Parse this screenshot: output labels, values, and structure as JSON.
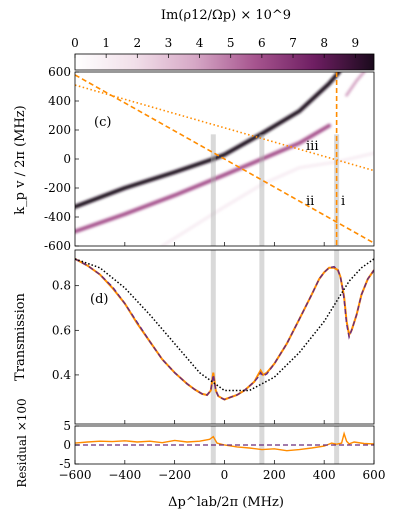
{
  "colorbar": {
    "label": "Im(ρ12/Ωp) × 10^9",
    "ticks": [
      0,
      1,
      2,
      3,
      4,
      5,
      6,
      7,
      8,
      9
    ],
    "range": [
      0,
      9.6
    ],
    "colormap": [
      "#ffffff",
      "#f1dfe9",
      "#d6a8c6",
      "#a7558f",
      "#6e1e62",
      "#1a0a1c"
    ]
  },
  "chart_data": [
    {
      "panel": "(c)",
      "type": "heatmap",
      "ylabel": "k_p v / 2π (MHz)",
      "ylim": [
        -600,
        600
      ],
      "yticks": [
        -600,
        -400,
        -200,
        0,
        200,
        400,
        600
      ],
      "xlim": [
        -600,
        600
      ],
      "grid": false,
      "annotations": [
        "(c)",
        "i",
        "ii",
        "iii"
      ],
      "absorption_tracks": [
        {
          "strength": 9,
          "points": [
            [
              -600,
              -330
            ],
            [
              -400,
              -200
            ],
            [
              -200,
              -90
            ],
            [
              -45,
              0
            ],
            [
              0,
              30
            ],
            [
              150,
              175
            ],
            [
              300,
              330
            ],
            [
              420,
              520
            ],
            [
              460,
              600
            ]
          ]
        },
        {
          "strength": 6,
          "points": [
            [
              -600,
              -500
            ],
            [
              -400,
              -380
            ],
            [
              -200,
              -250
            ],
            [
              0,
              -110
            ],
            [
              150,
              0
            ],
            [
              300,
              110
            ],
            [
              420,
              230
            ]
          ]
        },
        {
          "strength": 4,
          "points": [
            [
              490,
              440
            ],
            [
              530,
              540
            ],
            [
              560,
              600
            ]
          ]
        },
        {
          "strength": 1,
          "points": [
            [
              -250,
              -600
            ],
            [
              0,
              -330
            ],
            [
              150,
              -175
            ],
            [
              300,
              -60
            ],
            [
              450,
              -20
            ],
            [
              600,
              40
            ]
          ]
        }
      ],
      "lines": [
        {
          "label": "i",
          "style": "dashed",
          "color": "#ff8c00",
          "points": [
            [
              450,
              600
            ],
            [
              450,
              -600
            ]
          ]
        },
        {
          "label": "ii",
          "style": "dashed",
          "color": "#ff8c00",
          "points": [
            [
              -600,
              580
            ],
            [
              600,
              -580
            ]
          ]
        },
        {
          "label": "iii",
          "style": "dotted",
          "color": "#ff8c00",
          "points": [
            [
              -600,
              510
            ],
            [
              600,
              -80
            ]
          ]
        }
      ],
      "markers_x": [
        -45,
        150,
        450
      ]
    },
    {
      "panel": "(d)",
      "type": "line",
      "ylabel": "Transmission",
      "ylim": [
        0.18,
        0.96
      ],
      "yticks": [
        0.4,
        0.6,
        0.8
      ],
      "series": [
        {
          "style": "solid",
          "color": "#ff8c00",
          "x": [
            -600,
            -550,
            -500,
            -450,
            -400,
            -350,
            -300,
            -250,
            -200,
            -150,
            -120,
            -90,
            -70,
            -55,
            -45,
            -35,
            -25,
            -10,
            0,
            25,
            50,
            80,
            100,
            120,
            135,
            145,
            155,
            170,
            200,
            250,
            300,
            350,
            380,
            400,
            420,
            440,
            455,
            465,
            475,
            480,
            490,
            500,
            510,
            530,
            550,
            575,
            600
          ],
          "y": [
            0.92,
            0.89,
            0.85,
            0.79,
            0.72,
            0.63,
            0.55,
            0.47,
            0.41,
            0.36,
            0.335,
            0.315,
            0.31,
            0.33,
            0.41,
            0.33,
            0.305,
            0.295,
            0.29,
            0.3,
            0.31,
            0.33,
            0.35,
            0.37,
            0.4,
            0.42,
            0.4,
            0.41,
            0.45,
            0.54,
            0.65,
            0.76,
            0.83,
            0.86,
            0.88,
            0.88,
            0.87,
            0.84,
            0.78,
            0.75,
            0.64,
            0.58,
            0.6,
            0.67,
            0.76,
            0.83,
            0.87
          ]
        },
        {
          "style": "dashed",
          "color": "#6a2c7a",
          "x": [
            -600,
            -550,
            -500,
            -450,
            -400,
            -350,
            -300,
            -250,
            -200,
            -150,
            -120,
            -90,
            -70,
            -55,
            -45,
            -35,
            -25,
            -10,
            0,
            25,
            50,
            80,
            100,
            120,
            135,
            145,
            155,
            170,
            200,
            250,
            300,
            350,
            380,
            400,
            420,
            440,
            455,
            465,
            475,
            480,
            490,
            500,
            510,
            530,
            550,
            575,
            600
          ],
          "y": [
            0.92,
            0.89,
            0.85,
            0.795,
            0.72,
            0.635,
            0.55,
            0.47,
            0.41,
            0.36,
            0.335,
            0.315,
            0.31,
            0.33,
            0.4,
            0.33,
            0.305,
            0.295,
            0.29,
            0.3,
            0.31,
            0.33,
            0.35,
            0.37,
            0.39,
            0.41,
            0.395,
            0.405,
            0.45,
            0.54,
            0.65,
            0.76,
            0.83,
            0.86,
            0.88,
            0.885,
            0.87,
            0.84,
            0.78,
            0.74,
            0.63,
            0.57,
            0.6,
            0.67,
            0.76,
            0.83,
            0.87
          ]
        },
        {
          "style": "dotted",
          "color": "#000000",
          "x": [
            -600,
            -500,
            -400,
            -300,
            -200,
            -100,
            0,
            100,
            200,
            300,
            400,
            450,
            500,
            550,
            600
          ],
          "y": [
            0.92,
            0.88,
            0.79,
            0.67,
            0.54,
            0.41,
            0.33,
            0.33,
            0.39,
            0.5,
            0.64,
            0.73,
            0.82,
            0.88,
            0.92
          ]
        }
      ]
    },
    {
      "panel": "residual",
      "type": "line",
      "xlabel": "Δp^lab/2π (MHz)",
      "ylabel": "Residual ×100",
      "xlim": [
        -600,
        600
      ],
      "xticks": [
        -600,
        -400,
        -200,
        0,
        200,
        400,
        600
      ],
      "ylim": [
        -5,
        5
      ],
      "yticks": [
        5,
        0,
        -5
      ],
      "series": [
        {
          "style": "solid",
          "color": "#ff8c00",
          "x": [
            -600,
            -550,
            -500,
            -450,
            -400,
            -350,
            -300,
            -250,
            -200,
            -150,
            -100,
            -60,
            -45,
            -30,
            0,
            50,
            100,
            150,
            200,
            250,
            300,
            350,
            400,
            430,
            450,
            470,
            480,
            490,
            500,
            520,
            560,
            600
          ],
          "y": [
            0.5,
            0.8,
            1.0,
            0.9,
            1.1,
            0.8,
            1.0,
            0.6,
            1.2,
            0.8,
            1.0,
            1.5,
            2.2,
            0.5,
            0.0,
            -0.5,
            -0.8,
            -1.2,
            -1.0,
            -1.5,
            -1.2,
            -0.8,
            -0.3,
            0.5,
            0.2,
            0.5,
            3.0,
            1.0,
            0.3,
            0.8,
            0.4,
            0.3
          ]
        },
        {
          "style": "dashed",
          "color": "#6a2c7a",
          "x": [
            -600,
            600
          ],
          "y": [
            0,
            0
          ]
        }
      ]
    }
  ]
}
